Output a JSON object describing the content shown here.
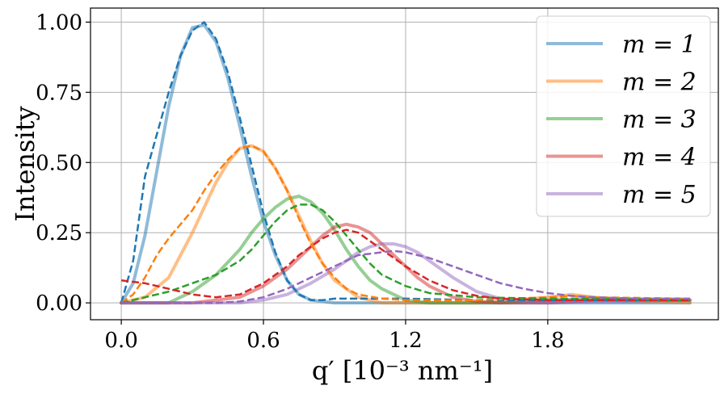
{
  "chart_data": {
    "type": "line",
    "title": "",
    "xlabel": "q′ [10⁻³ nm⁻¹]",
    "ylabel": "Intensity",
    "xlim": [
      -0.13,
      2.52
    ],
    "ylim": [
      -0.06,
      1.05
    ],
    "x_ticks": [
      0.0,
      0.6,
      1.2,
      1.8
    ],
    "x_tick_labels": [
      "0.0",
      "0.6",
      "1.2",
      "1.8"
    ],
    "y_ticks": [
      0.0,
      0.25,
      0.5,
      0.75,
      1.0
    ],
    "y_tick_labels": [
      "0.00",
      "0.25",
      "0.50",
      "0.75",
      "1.00"
    ],
    "grid": true,
    "legend_position": "top-right",
    "legend_labels": [
      "m = 1",
      "m = 2",
      "m = 3",
      "m = 4",
      "m = 5"
    ],
    "series": [
      {
        "name": "m = 1",
        "color": "#1f77b4",
        "solid": {
          "x": [
            0.0,
            0.05,
            0.1,
            0.15,
            0.2,
            0.25,
            0.3,
            0.35,
            0.4,
            0.45,
            0.5,
            0.55,
            0.6,
            0.65,
            0.7,
            0.75,
            0.8,
            0.9,
            1.0,
            1.2,
            1.5,
            1.8,
            2.1,
            2.4
          ],
          "y": [
            0.0,
            0.07,
            0.24,
            0.47,
            0.7,
            0.88,
            0.98,
            0.99,
            0.93,
            0.8,
            0.63,
            0.45,
            0.29,
            0.17,
            0.08,
            0.03,
            0.01,
            0.0,
            0.0,
            0.0,
            0.0,
            0.0,
            0.0,
            0.0
          ]
        },
        "dashed": {
          "x": [
            0.0,
            0.05,
            0.1,
            0.15,
            0.2,
            0.25,
            0.3,
            0.35,
            0.4,
            0.45,
            0.5,
            0.55,
            0.6,
            0.65,
            0.7,
            0.75,
            0.8,
            0.85,
            0.9,
            1.0,
            1.2,
            1.5,
            1.8,
            2.1,
            2.4
          ],
          "y": [
            0.0,
            0.15,
            0.45,
            0.6,
            0.75,
            0.88,
            0.97,
            1.0,
            0.94,
            0.82,
            0.66,
            0.49,
            0.32,
            0.18,
            0.08,
            0.03,
            0.01,
            0.01,
            0.015,
            0.015,
            0.015,
            0.01,
            0.01,
            0.01,
            0.01
          ]
        }
      },
      {
        "name": "m = 2",
        "color": "#ff7f0e",
        "solid": {
          "x": [
            0.0,
            0.1,
            0.2,
            0.3,
            0.35,
            0.4,
            0.45,
            0.5,
            0.55,
            0.6,
            0.65,
            0.7,
            0.75,
            0.8,
            0.85,
            0.9,
            1.0,
            1.1,
            1.2,
            1.5,
            1.8,
            1.9,
            2.0,
            2.1,
            2.4
          ],
          "y": [
            0.0,
            0.02,
            0.09,
            0.25,
            0.34,
            0.43,
            0.5,
            0.55,
            0.56,
            0.54,
            0.48,
            0.4,
            0.31,
            0.22,
            0.14,
            0.08,
            0.02,
            0.0,
            0.0,
            0.0,
            0.02,
            0.03,
            0.02,
            0.01,
            0.0
          ]
        },
        "dashed": {
          "x": [
            0.0,
            0.05,
            0.1,
            0.15,
            0.2,
            0.25,
            0.3,
            0.35,
            0.4,
            0.45,
            0.5,
            0.55,
            0.6,
            0.65,
            0.7,
            0.75,
            0.8,
            0.85,
            0.9,
            0.95,
            1.0,
            1.1,
            1.2,
            1.5,
            1.8,
            1.9,
            2.0,
            2.4
          ],
          "y": [
            0.0,
            0.03,
            0.09,
            0.17,
            0.23,
            0.28,
            0.33,
            0.4,
            0.46,
            0.51,
            0.55,
            0.56,
            0.54,
            0.48,
            0.4,
            0.3,
            0.21,
            0.14,
            0.09,
            0.05,
            0.03,
            0.015,
            0.01,
            0.01,
            0.02,
            0.025,
            0.02,
            0.015
          ]
        }
      },
      {
        "name": "m = 3",
        "color": "#2ca02c",
        "solid": {
          "x": [
            0.0,
            0.2,
            0.3,
            0.4,
            0.5,
            0.55,
            0.6,
            0.65,
            0.7,
            0.75,
            0.8,
            0.85,
            0.9,
            0.95,
            1.0,
            1.05,
            1.1,
            1.2,
            1.3,
            1.4,
            1.6,
            1.8,
            2.0,
            2.4
          ],
          "y": [
            0.0,
            0.0,
            0.04,
            0.1,
            0.19,
            0.25,
            0.3,
            0.34,
            0.37,
            0.38,
            0.36,
            0.32,
            0.26,
            0.19,
            0.13,
            0.08,
            0.05,
            0.01,
            0.0,
            0.0,
            0.0,
            0.01,
            0.015,
            0.01
          ]
        },
        "dashed": {
          "x": [
            0.0,
            0.1,
            0.2,
            0.3,
            0.4,
            0.5,
            0.55,
            0.6,
            0.65,
            0.7,
            0.75,
            0.8,
            0.85,
            0.9,
            0.95,
            1.0,
            1.05,
            1.1,
            1.2,
            1.3,
            1.5,
            1.8,
            2.0,
            2.4
          ],
          "y": [
            0.0,
            0.02,
            0.04,
            0.07,
            0.1,
            0.15,
            0.19,
            0.24,
            0.29,
            0.33,
            0.35,
            0.35,
            0.33,
            0.29,
            0.24,
            0.19,
            0.14,
            0.1,
            0.06,
            0.035,
            0.02,
            0.015,
            0.015,
            0.01
          ]
        }
      },
      {
        "name": "m = 4",
        "color": "#d62728",
        "solid": {
          "x": [
            0.0,
            0.3,
            0.4,
            0.5,
            0.6,
            0.7,
            0.75,
            0.8,
            0.85,
            0.9,
            0.95,
            1.0,
            1.05,
            1.1,
            1.15,
            1.2,
            1.25,
            1.3,
            1.4,
            1.5,
            1.6,
            1.8,
            2.0,
            2.4
          ],
          "y": [
            0.0,
            0.0,
            0.01,
            0.02,
            0.06,
            0.12,
            0.16,
            0.2,
            0.24,
            0.27,
            0.28,
            0.27,
            0.25,
            0.21,
            0.17,
            0.13,
            0.09,
            0.06,
            0.02,
            0.005,
            0.0,
            0.0,
            0.01,
            0.01
          ]
        },
        "dashed": {
          "x": [
            0.0,
            0.1,
            0.2,
            0.3,
            0.4,
            0.5,
            0.6,
            0.7,
            0.75,
            0.8,
            0.85,
            0.9,
            0.95,
            1.0,
            1.05,
            1.1,
            1.2,
            1.3,
            1.4,
            1.5,
            1.6,
            1.8,
            2.0,
            2.4
          ],
          "y": [
            0.08,
            0.07,
            0.05,
            0.03,
            0.02,
            0.03,
            0.07,
            0.13,
            0.17,
            0.2,
            0.23,
            0.25,
            0.26,
            0.25,
            0.22,
            0.19,
            0.13,
            0.08,
            0.045,
            0.025,
            0.015,
            0.01,
            0.01,
            0.01
          ]
        }
      },
      {
        "name": "m = 5",
        "color": "#9467bd",
        "solid": {
          "x": [
            0.0,
            0.5,
            0.6,
            0.7,
            0.8,
            0.9,
            0.95,
            1.0,
            1.05,
            1.1,
            1.15,
            1.2,
            1.25,
            1.3,
            1.35,
            1.4,
            1.5,
            1.6,
            1.7,
            1.8,
            2.0,
            2.4
          ],
          "y": [
            0.0,
            0.0,
            0.01,
            0.03,
            0.07,
            0.12,
            0.15,
            0.18,
            0.2,
            0.21,
            0.21,
            0.2,
            0.18,
            0.15,
            0.12,
            0.09,
            0.04,
            0.015,
            0.005,
            0.0,
            0.005,
            0.01
          ]
        },
        "dashed": {
          "x": [
            0.0,
            0.2,
            0.4,
            0.5,
            0.6,
            0.7,
            0.8,
            0.9,
            1.0,
            1.1,
            1.15,
            1.2,
            1.3,
            1.4,
            1.5,
            1.6,
            1.7,
            1.8,
            1.9,
            2.0,
            2.2,
            2.4
          ],
          "y": [
            0.0,
            0.0,
            0.0,
            0.005,
            0.02,
            0.05,
            0.09,
            0.13,
            0.17,
            0.18,
            0.185,
            0.18,
            0.16,
            0.13,
            0.1,
            0.07,
            0.05,
            0.035,
            0.025,
            0.02,
            0.015,
            0.015
          ]
        }
      }
    ]
  }
}
